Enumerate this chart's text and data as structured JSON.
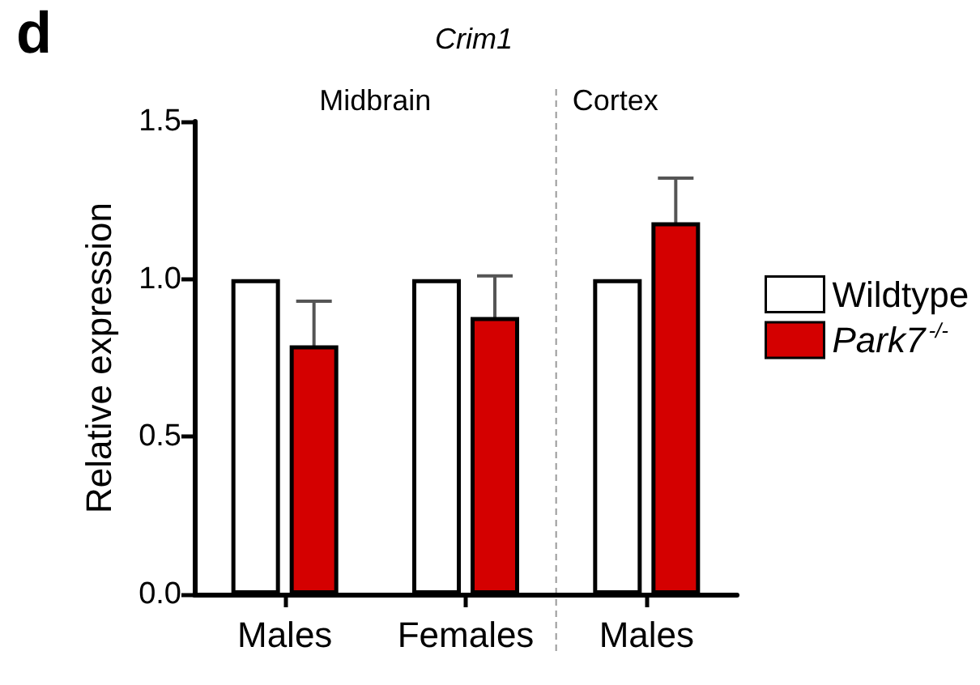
{
  "chart_data": {
    "type": "bar",
    "title": "Crim1",
    "ylabel": "Relative expression",
    "categories": [
      "Males",
      "Females",
      "Males"
    ],
    "series": [
      {
        "name": "Wildtype",
        "color": "#ffffff",
        "values": [
          1.0,
          1.0,
          1.0
        ]
      },
      {
        "name": "Park7$^{-/-}$",
        "color": "#d40000",
        "values": [
          0.79,
          0.88,
          1.18
        ],
        "errors": [
          0.14,
          0.13,
          0.14
        ]
      }
    ],
    "ylim": [
      0,
      1.5
    ],
    "yticks": [
      {
        "value": 0,
        "label": "0.0"
      },
      {
        "value": 0.5,
        "label": "0.5"
      },
      {
        "value": 1,
        "label": "1.0"
      },
      {
        "value": 1.5,
        "label": "1.5"
      }
    ],
    "annotations": [
      "d",
      "Midbrain",
      "Cortex"
    ],
    "grid": false,
    "legend": "right"
  }
}
